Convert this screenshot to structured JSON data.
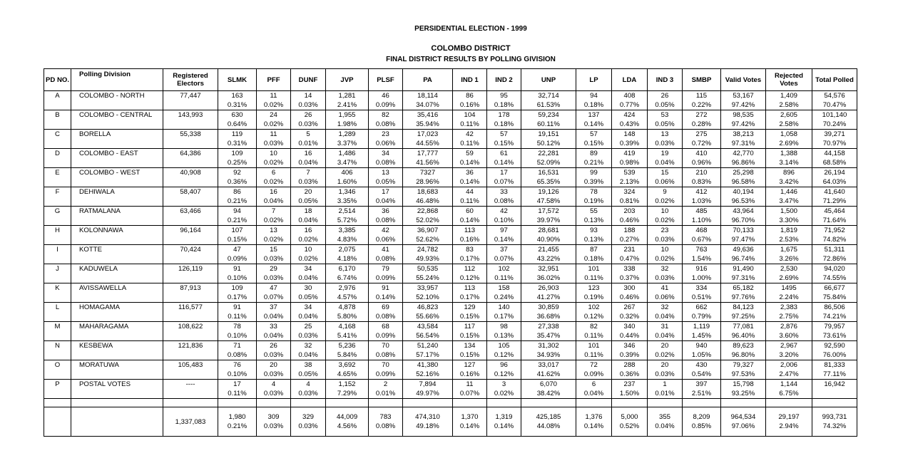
{
  "titles": {
    "line1": "PERSIDENTIAL ELECTION - 1999",
    "line2": "COLOMBO DISTRICT",
    "line3": "FINAL DISTRICT RESULTS BY POLLING GIVISION"
  },
  "headers": {
    "pd": "PD NO.",
    "division": "Polling Division",
    "registered": "Registered Electors",
    "parties": [
      "SLMK",
      "PFF",
      "DUNF",
      "JVP",
      "PLSF",
      "PA",
      "IND 1",
      "IND 2",
      "UNP",
      "LP",
      "LDA",
      "IND 3",
      "SMBP"
    ],
    "valid": "Valid Votes",
    "rejected": "Rejected Votes",
    "total": "Total Polled"
  },
  "rows": [
    {
      "pd": "A",
      "name": "COLOMBO - NORTH",
      "reg": "77,447",
      "cells": [
        [
          "163",
          "0.31%"
        ],
        [
          "11",
          "0.02%"
        ],
        [
          "14",
          "0.03%"
        ],
        [
          "1,281",
          "2.41%"
        ],
        [
          "46",
          "0.09%"
        ],
        [
          "18,114",
          "34.07%"
        ],
        [
          "86",
          "0.16%"
        ],
        [
          "95",
          "0.18%"
        ],
        [
          "32,714",
          "61.53%"
        ],
        [
          "94",
          "0.18%"
        ],
        [
          "408",
          "0.77%"
        ],
        [
          "26",
          "0.05%"
        ],
        [
          "115",
          "0.22%"
        ],
        [
          "53,167",
          "97.42%"
        ],
        [
          "1,409",
          "2.58%"
        ],
        [
          "54,576",
          "70.47%"
        ]
      ]
    },
    {
      "pd": "B",
      "name": "COLOMBO - CENTRAL",
      "reg": "143,993",
      "cells": [
        [
          "630",
          "0.64%"
        ],
        [
          "24",
          "0.02%"
        ],
        [
          "26",
          "0.03%"
        ],
        [
          "1,955",
          "1.98%"
        ],
        [
          "82",
          "0.08%"
        ],
        [
          "35,416",
          "35.94%"
        ],
        [
          "104",
          "0.11%"
        ],
        [
          "178",
          "0.18%"
        ],
        [
          "59,234",
          "60.11%"
        ],
        [
          "137",
          "0.14%"
        ],
        [
          "424",
          "0.43%"
        ],
        [
          "53",
          "0.05%"
        ],
        [
          "272",
          "0.28%"
        ],
        [
          "98,535",
          "97.42%"
        ],
        [
          "2,605",
          "2.58%"
        ],
        [
          "101,140",
          "70.24%"
        ]
      ]
    },
    {
      "pd": "C",
      "name": "BORELLA",
      "reg": "55,338",
      "cells": [
        [
          "119",
          "0.31%"
        ],
        [
          "11",
          "0.03%"
        ],
        [
          "5",
          "0.01%"
        ],
        [
          "1,289",
          "3.37%"
        ],
        [
          "23",
          "0.06%"
        ],
        [
          "17,023",
          "44.55%"
        ],
        [
          "42",
          "0.11%"
        ],
        [
          "57",
          "0.15%"
        ],
        [
          "19,151",
          "50.12%"
        ],
        [
          "57",
          "0.15%"
        ],
        [
          "148",
          "0.39%"
        ],
        [
          "13",
          "0.03%"
        ],
        [
          "275",
          "0.72%"
        ],
        [
          "38,213",
          "97.31%"
        ],
        [
          "1,058",
          "2.69%"
        ],
        [
          "39,271",
          "70.97%"
        ]
      ]
    },
    {
      "pd": "D",
      "name": "COLOMBO - EAST",
      "reg": "64,386",
      "cells": [
        [
          "109",
          "0.25%"
        ],
        [
          "10",
          "0.02%"
        ],
        [
          "16",
          "0.04%"
        ],
        [
          "1,486",
          "3.47%"
        ],
        [
          "34",
          "0.08%"
        ],
        [
          "17,777",
          "41.56%"
        ],
        [
          "59",
          "0.14%"
        ],
        [
          "61",
          "0.14%"
        ],
        [
          "22,281",
          "52.09%"
        ],
        [
          "89",
          "0.21%"
        ],
        [
          "419",
          "0.98%"
        ],
        [
          "19",
          "0.04%"
        ],
        [
          "410",
          "0.96%"
        ],
        [
          "42,770",
          "96.86%"
        ],
        [
          "1,388",
          "3.14%"
        ],
        [
          "44,158",
          "68.58%"
        ]
      ]
    },
    {
      "pd": "E",
      "name": "COLOMBO - WEST",
      "reg": "40,908",
      "cells": [
        [
          "92",
          "0.36%"
        ],
        [
          "6",
          "0.02%"
        ],
        [
          "7",
          "0.03%"
        ],
        [
          "406",
          "1.60%"
        ],
        [
          "13",
          "0.05%"
        ],
        [
          "7327",
          "28.96%"
        ],
        [
          "36",
          "0.14%"
        ],
        [
          "17",
          "0.07%"
        ],
        [
          "16,531",
          "65.35%"
        ],
        [
          "99",
          "0.39%"
        ],
        [
          "539",
          "2.13%"
        ],
        [
          "15",
          "0.06%"
        ],
        [
          "210",
          "0.83%"
        ],
        [
          "25,298",
          "96.58%"
        ],
        [
          "896",
          "3.42%"
        ],
        [
          "26,194",
          "64.03%"
        ]
      ]
    },
    {
      "pd": "F",
      "name": "DEHIWALA",
      "reg": "58,407",
      "cells": [
        [
          "86",
          "0.21%"
        ],
        [
          "16",
          "0.04%"
        ],
        [
          "20",
          "0.05%"
        ],
        [
          "1,346",
          "3.35%"
        ],
        [
          "17",
          "0.04%"
        ],
        [
          "18,683",
          "46.48%"
        ],
        [
          "44",
          "0.11%"
        ],
        [
          "33",
          "0.08%"
        ],
        [
          "19,126",
          "47.58%"
        ],
        [
          "78",
          "0.19%"
        ],
        [
          "324",
          "0.81%"
        ],
        [
          "9",
          "0.02%"
        ],
        [
          "412",
          "1.03%"
        ],
        [
          "40,194",
          "96.53%"
        ],
        [
          "1,446",
          "3.47%"
        ],
        [
          "41,640",
          "71.29%"
        ]
      ]
    },
    {
      "pd": "G",
      "name": "RATMALANA",
      "reg": "63,466",
      "cells": [
        [
          "94",
          "0.21%"
        ],
        [
          "7",
          "0.02%"
        ],
        [
          "18",
          "0.04%"
        ],
        [
          "2,514",
          "5.72%"
        ],
        [
          "36",
          "0.08%"
        ],
        [
          "22,868",
          "52.02%"
        ],
        [
          "60",
          "0.14%"
        ],
        [
          "42",
          "0.10%"
        ],
        [
          "17,572",
          "39.97%"
        ],
        [
          "55",
          "0.13%"
        ],
        [
          "203",
          "0.46%"
        ],
        [
          "10",
          "0.02%"
        ],
        [
          "485",
          "1.10%"
        ],
        [
          "43,964",
          "96.70%"
        ],
        [
          "1,500",
          "3.30%"
        ],
        [
          "45,464",
          "71.64%"
        ]
      ]
    },
    {
      "pd": "H",
      "name": "KOLONNAWA",
      "reg": "96,164",
      "cells": [
        [
          "107",
          "0.15%"
        ],
        [
          "13",
          "0.02%"
        ],
        [
          "16",
          "0.02%"
        ],
        [
          "3,385",
          "4.83%"
        ],
        [
          "42",
          "0.06%"
        ],
        [
          "36,907",
          "52.62%"
        ],
        [
          "113",
          "0.16%"
        ],
        [
          "97",
          "0.14%"
        ],
        [
          "28,681",
          "40.90%"
        ],
        [
          "93",
          "0.13%"
        ],
        [
          "188",
          "0.27%"
        ],
        [
          "23",
          "0.03%"
        ],
        [
          "468",
          "0.67%"
        ],
        [
          "70,133",
          "97.47%"
        ],
        [
          "1,819",
          "2.53%"
        ],
        [
          "71,952",
          "74.82%"
        ]
      ]
    },
    {
      "pd": "I",
      "name": "KOTTE",
      "reg": "70,424",
      "cells": [
        [
          "47",
          "0.09%"
        ],
        [
          "15",
          "0.03%"
        ],
        [
          "10",
          "0.02%"
        ],
        [
          "2,075",
          "4.18%"
        ],
        [
          "41",
          "0.08%"
        ],
        [
          "24,782",
          "49.93%"
        ],
        [
          "83",
          "0.17%"
        ],
        [
          "37",
          "0.07%"
        ],
        [
          "21,455",
          "43.22%"
        ],
        [
          "87",
          "0.18%"
        ],
        [
          "231",
          "0.47%"
        ],
        [
          "10",
          "0.02%"
        ],
        [
          "763",
          "1.54%"
        ],
        [
          "49,636",
          "96.74%"
        ],
        [
          "1,675",
          "3.26%"
        ],
        [
          "51,311",
          "72.86%"
        ]
      ]
    },
    {
      "pd": "J",
      "name": "KADUWELA",
      "reg": "126,119",
      "cells": [
        [
          "91",
          "0.10%"
        ],
        [
          "29",
          "0.03%"
        ],
        [
          "34",
          "0.04%"
        ],
        [
          "6,170",
          "6.74%"
        ],
        [
          "79",
          "0.09%"
        ],
        [
          "50,535",
          "55.24%"
        ],
        [
          "112",
          "0.12%"
        ],
        [
          "102",
          "0.11%"
        ],
        [
          "32,951",
          "36.02%"
        ],
        [
          "101",
          "0.11%"
        ],
        [
          "338",
          "0.37%"
        ],
        [
          "32",
          "0.03%"
        ],
        [
          "916",
          "1.00%"
        ],
        [
          "91,490",
          "97.31%"
        ],
        [
          "2,530",
          "2.69%"
        ],
        [
          "94,020",
          "74.55%"
        ]
      ]
    },
    {
      "pd": "K",
      "name": "AVISSAWELLA",
      "reg": "87,913",
      "cells": [
        [
          "109",
          "0.17%"
        ],
        [
          "47",
          "0.07%"
        ],
        [
          "30",
          "0.05%"
        ],
        [
          "2,976",
          "4.57%"
        ],
        [
          "91",
          "0.14%"
        ],
        [
          "33,957",
          "52.10%"
        ],
        [
          "113",
          "0.17%"
        ],
        [
          "158",
          "0.24%"
        ],
        [
          "26,903",
          "41.27%"
        ],
        [
          "123",
          "0.19%"
        ],
        [
          "300",
          "0.46%"
        ],
        [
          "41",
          "0.06%"
        ],
        [
          "334",
          "0.51%"
        ],
        [
          "65,182",
          "97.76%"
        ],
        [
          "1495",
          "2.24%"
        ],
        [
          "66,677",
          "75.84%"
        ]
      ]
    },
    {
      "pd": "L",
      "name": "HOMAGAMA",
      "reg": "116,577",
      "cells": [
        [
          "91",
          "0.11%"
        ],
        [
          "37",
          "0.04%"
        ],
        [
          "34",
          "0.04%"
        ],
        [
          "4,878",
          "5.80%"
        ],
        [
          "69",
          "0.08%"
        ],
        [
          "46,823",
          "55.66%"
        ],
        [
          "129",
          "0.15%"
        ],
        [
          "140",
          "0.17%"
        ],
        [
          "30,859",
          "36.68%"
        ],
        [
          "102",
          "0.12%"
        ],
        [
          "267",
          "0.32%"
        ],
        [
          "32",
          "0.04%"
        ],
        [
          "662",
          "0.79%"
        ],
        [
          "84,123",
          "97.25%"
        ],
        [
          "2,383",
          "2.75%"
        ],
        [
          "86,506",
          "74.21%"
        ]
      ]
    },
    {
      "pd": "M",
      "name": "MAHARAGAMA",
      "reg": "108,622",
      "cells": [
        [
          "78",
          "0.10%"
        ],
        [
          "33",
          "0.04%"
        ],
        [
          "25",
          "0.03%"
        ],
        [
          "4,168",
          "5.41%"
        ],
        [
          "68",
          "0.09%"
        ],
        [
          "43,584",
          "56.54%"
        ],
        [
          "117",
          "0.15%"
        ],
        [
          "98",
          "0.13%"
        ],
        [
          "27,338",
          "35.47%"
        ],
        [
          "82",
          "0.11%"
        ],
        [
          "340",
          "0.44%"
        ],
        [
          "31",
          "0.04%"
        ],
        [
          "1,119",
          "1.45%"
        ],
        [
          "77,081",
          "96.40%"
        ],
        [
          "2,876",
          "3.60%"
        ],
        [
          "79,957",
          "73.61%"
        ]
      ]
    },
    {
      "pd": "N",
      "name": "KESBEWA",
      "reg": "121,836",
      "cells": [
        [
          "71",
          "0.08%"
        ],
        [
          "26",
          "0.03%"
        ],
        [
          "32",
          "0.04%"
        ],
        [
          "5,236",
          "5.84%"
        ],
        [
          "70",
          "0.08%"
        ],
        [
          "51,240",
          "57.17%"
        ],
        [
          "134",
          "0.15%"
        ],
        [
          "105",
          "0.12%"
        ],
        [
          "31,302",
          "34.93%"
        ],
        [
          "101",
          "0.11%"
        ],
        [
          "346",
          "0.39%"
        ],
        [
          "20",
          "0.02%"
        ],
        [
          "940",
          "1.05%"
        ],
        [
          "89,623",
          "96.80%"
        ],
        [
          "2,967",
          "3.20%"
        ],
        [
          "92,590",
          "76.00%"
        ]
      ]
    },
    {
      "pd": "O",
      "name": "MORATUWA",
      "reg": "105,483",
      "cells": [
        [
          "76",
          "0.10%"
        ],
        [
          "20",
          "0.03%"
        ],
        [
          "38",
          "0.05%"
        ],
        [
          "3,692",
          "4.65%"
        ],
        [
          "70",
          "0.09%"
        ],
        [
          "41,380",
          "52.16%"
        ],
        [
          "127",
          "0.16%"
        ],
        [
          "96",
          "0.12%"
        ],
        [
          "33,017",
          "41.62%"
        ],
        [
          "72",
          "0.09%"
        ],
        [
          "288",
          "0.36%"
        ],
        [
          "20",
          "0.03%"
        ],
        [
          "430",
          "0.54%"
        ],
        [
          "79,327",
          "97.53%"
        ],
        [
          "2,006",
          "2.47%"
        ],
        [
          "81,333",
          "77.11%"
        ]
      ]
    },
    {
      "pd": "P",
      "name": "POSTAL VOTES",
      "reg": "----",
      "cells": [
        [
          "17",
          "0.11%"
        ],
        [
          "4",
          "0.03%"
        ],
        [
          "4",
          "0.03%"
        ],
        [
          "1,152",
          "7.29%"
        ],
        [
          "2",
          "0.01%"
        ],
        [
          "7,894",
          "49.97%"
        ],
        [
          "11",
          "0.07%"
        ],
        [
          "3",
          "0.02%"
        ],
        [
          "6,070",
          "38.42%"
        ],
        [
          "6",
          "0.04%"
        ],
        [
          "237",
          "1.50%"
        ],
        [
          "1",
          "0.01%"
        ],
        [
          "397",
          "2.51%"
        ],
        [
          "15,798",
          "93.25%"
        ],
        [
          "1,144",
          "6.75%"
        ],
        [
          "16,942",
          ""
        ]
      ]
    }
  ],
  "total": {
    "reg": "1,337,083",
    "cells": [
      [
        "1,980",
        "0.21%"
      ],
      [
        "309",
        "0.03%"
      ],
      [
        "329",
        "0.03%"
      ],
      [
        "44,009",
        "4.56%"
      ],
      [
        "783",
        "0.08%"
      ],
      [
        "474,310",
        "49.18%"
      ],
      [
        "1,370",
        "0.14%"
      ],
      [
        "1,319",
        "0.14%"
      ],
      [
        "425,185",
        "44.08%"
      ],
      [
        "1,376",
        "0.14%"
      ],
      [
        "5,000",
        "0.52%"
      ],
      [
        "355",
        "0.04%"
      ],
      [
        "8,209",
        "0.85%"
      ],
      [
        "964,534",
        "97.06%"
      ],
      [
        "29,197",
        "2.94%"
      ],
      [
        "993,731",
        "74.32%"
      ]
    ]
  }
}
